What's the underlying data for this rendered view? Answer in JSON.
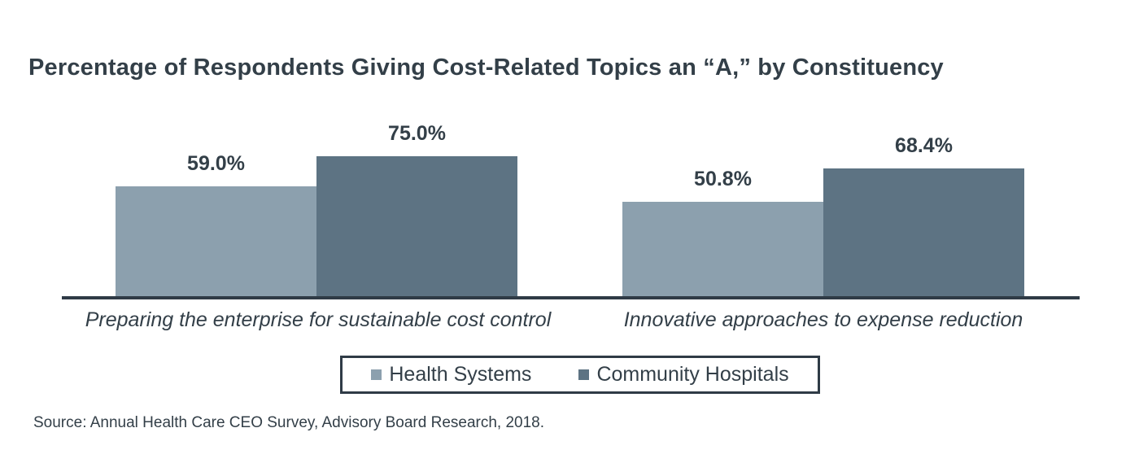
{
  "title": "Percentage of Respondents Giving Cost-Related Topics an “A,” by Constituency",
  "source": "Source: Annual Health Care CEO Survey, Advisory Board Research, 2018.",
  "colors": {
    "text": "#333F48",
    "axis": "#2F3B46",
    "health_systems": "#8CA0AE",
    "community_hospitals": "#5D7383",
    "background": "#FFFFFF"
  },
  "chart_data": {
    "type": "bar",
    "title": "Percentage of Respondents Giving Cost-Related Topics an “A,” by Constituency",
    "categories": [
      "Preparing the enterprise for sustainable cost control",
      "Innovative approaches to expense reduction"
    ],
    "series": [
      {
        "name": "Health Systems",
        "values": [
          59.0,
          50.8
        ],
        "labels": [
          "59.0%",
          "50.8%"
        ],
        "color": "#8CA0AE"
      },
      {
        "name": "Community Hospitals",
        "values": [
          75.0,
          68.4
        ],
        "labels": [
          "75.0%",
          "68.4%"
        ],
        "color": "#5D7383"
      }
    ],
    "xlabel": "",
    "ylabel": "",
    "ylim": [
      0,
      100
    ],
    "grid": false,
    "legend_position": "bottom",
    "value_labels_shown": true
  }
}
